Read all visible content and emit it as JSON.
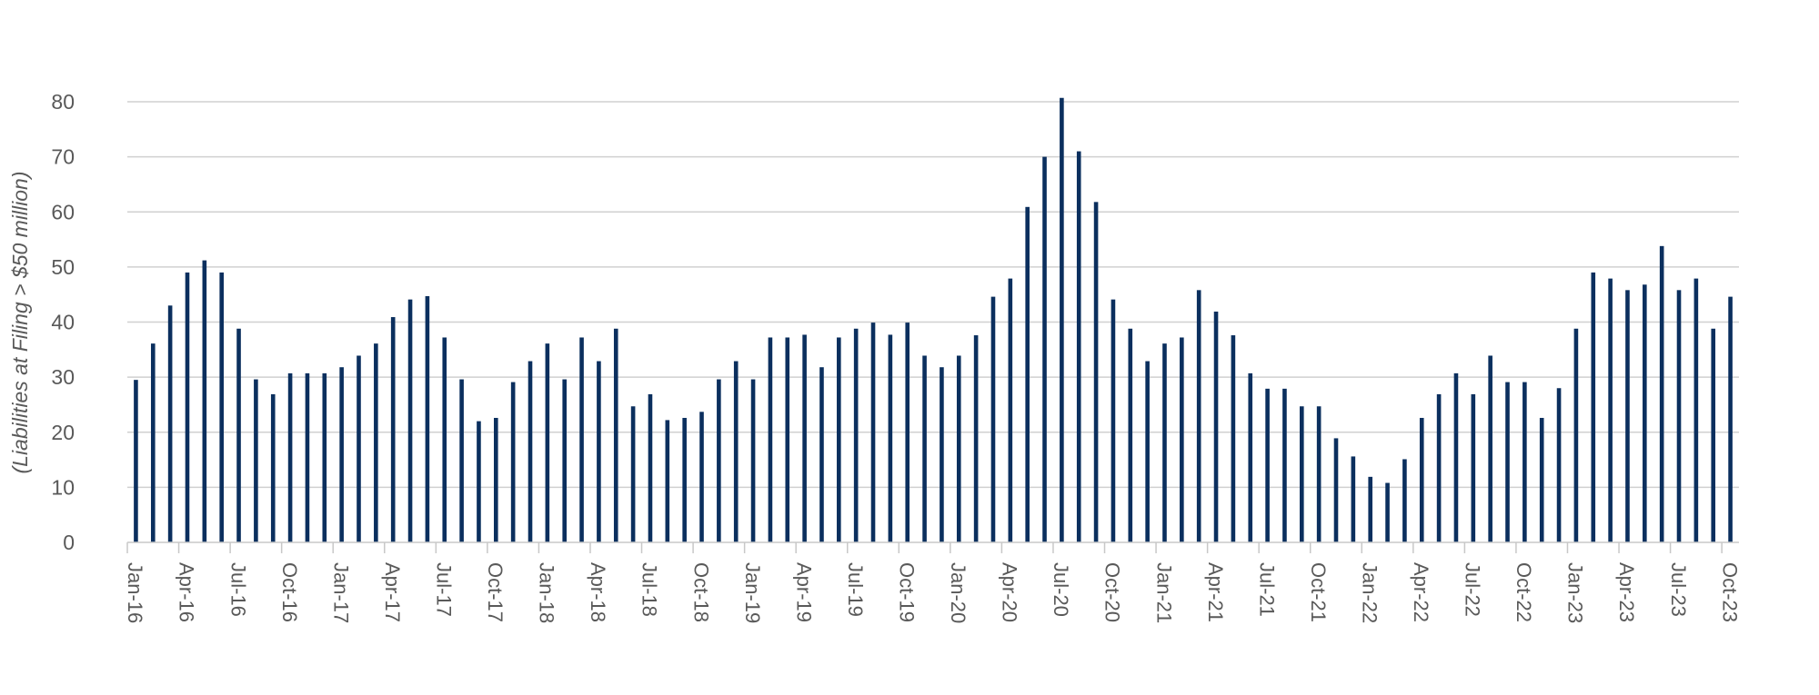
{
  "chart_data": {
    "type": "bar",
    "title": "",
    "xlabel": "",
    "ylabel": "(Liabilities at Filing > $50 million)",
    "ylim": [
      0,
      80
    ],
    "yticks": [
      0,
      10,
      20,
      30,
      40,
      50,
      60,
      70,
      80
    ],
    "grid": true,
    "bar_color": "#0b2f5e",
    "categories": [
      "Jan-16",
      "Feb-16",
      "Mar-16",
      "Apr-16",
      "May-16",
      "Jun-16",
      "Jul-16",
      "Aug-16",
      "Sep-16",
      "Oct-16",
      "Nov-16",
      "Dec-16",
      "Jan-17",
      "Feb-17",
      "Mar-17",
      "Apr-17",
      "May-17",
      "Jun-17",
      "Jul-17",
      "Aug-17",
      "Sep-17",
      "Oct-17",
      "Nov-17",
      "Dec-17",
      "Jan-18",
      "Feb-18",
      "Mar-18",
      "Apr-18",
      "May-18",
      "Jun-18",
      "Jul-18",
      "Aug-18",
      "Sep-18",
      "Oct-18",
      "Nov-18",
      "Dec-18",
      "Jan-19",
      "Feb-19",
      "Mar-19",
      "Apr-19",
      "May-19",
      "Jun-19",
      "Jul-19",
      "Aug-19",
      "Sep-19",
      "Oct-19",
      "Nov-19",
      "Dec-19",
      "Jan-20",
      "Feb-20",
      "Mar-20",
      "Apr-20",
      "May-20",
      "Jun-20",
      "Jul-20",
      "Aug-20",
      "Sep-20",
      "Oct-20",
      "Nov-20",
      "Dec-20",
      "Jan-21",
      "Feb-21",
      "Mar-21",
      "Apr-21",
      "May-21",
      "Jun-21",
      "Jul-21",
      "Aug-21",
      "Sep-21",
      "Oct-21",
      "Nov-21",
      "Dec-21",
      "Jan-22",
      "Feb-22",
      "Mar-22",
      "Apr-22",
      "May-22",
      "Jun-22",
      "Jul-22",
      "Aug-22",
      "Sep-22",
      "Oct-22",
      "Nov-22",
      "Dec-22",
      "Jan-23",
      "Feb-23",
      "Mar-23",
      "Apr-23",
      "May-23",
      "Jun-23",
      "Jul-23",
      "Aug-23",
      "Sep-23",
      "Oct-23"
    ],
    "xtick_labels": [
      "Jan-16",
      "Apr-16",
      "Jul-16",
      "Oct-16",
      "Jan-17",
      "Apr-17",
      "Jul-17",
      "Oct-17",
      "Jan-18",
      "Apr-18",
      "Jul-18",
      "Oct-18",
      "Jan-19",
      "Apr-19",
      "Jul-19",
      "Oct-19",
      "Jan-20",
      "Apr-20",
      "Jul-20",
      "Oct-20",
      "Jan-21",
      "Apr-21",
      "Jul-21",
      "Oct-21",
      "Jan-22",
      "Apr-22",
      "Jul-22",
      "Oct-22",
      "Jan-23",
      "Apr-23",
      "Jul-23",
      "Oct-23"
    ],
    "values": [
      29.5,
      36.1,
      43.0,
      49.0,
      51.2,
      49.0,
      38.8,
      29.6,
      26.9,
      30.7,
      30.7,
      30.7,
      31.8,
      33.9,
      36.1,
      40.9,
      44.1,
      44.7,
      37.2,
      29.6,
      22.0,
      22.6,
      29.1,
      32.9,
      36.1,
      29.6,
      37.2,
      32.9,
      38.8,
      24.7,
      26.9,
      22.2,
      22.6,
      23.7,
      29.6,
      32.9,
      29.6,
      37.2,
      37.2,
      37.7,
      31.8,
      37.2,
      38.8,
      39.9,
      37.7,
      39.9,
      33.9,
      31.8,
      33.9,
      37.6,
      44.6,
      47.9,
      60.9,
      70.0,
      80.7,
      71.0,
      61.8,
      44.1,
      38.8,
      32.9,
      36.1,
      37.2,
      45.8,
      41.9,
      37.6,
      30.7,
      27.9,
      27.9,
      24.7,
      24.7,
      18.9,
      15.6,
      11.9,
      10.8,
      15.1,
      22.6,
      26.9,
      30.7,
      26.9,
      33.9,
      29.1,
      29.1,
      22.6,
      28.0,
      38.8,
      49.0,
      47.9,
      45.8,
      46.8,
      53.8,
      45.8,
      47.9,
      38.8,
      44.6
    ]
  }
}
